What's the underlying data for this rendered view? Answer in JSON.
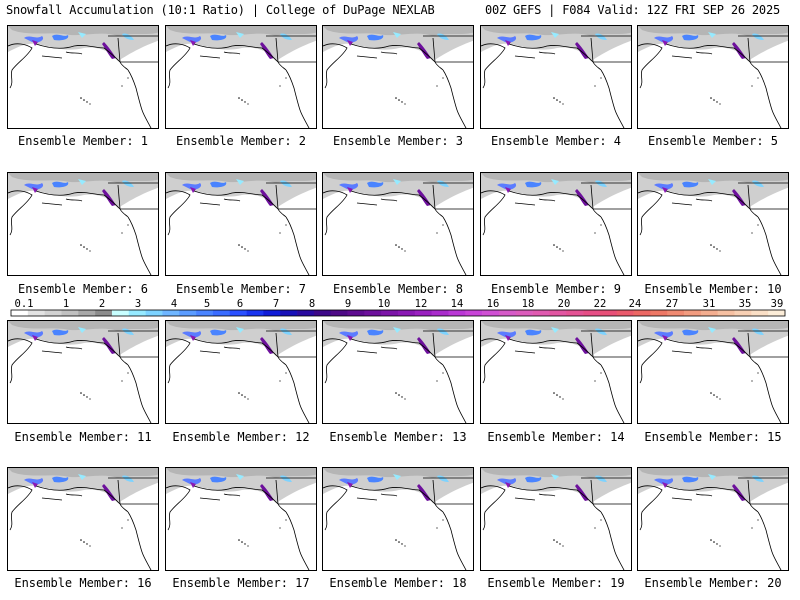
{
  "header": {
    "left": "Snowfall Accumulation (10:1 Ratio) | College of DuPage NEXLAB",
    "right": "00Z GEFS | F084 Valid: 12Z FRI SEP 26 2025"
  },
  "caption_prefix": "Ensemble Member:",
  "members": [
    {
      "number": "1"
    },
    {
      "number": "2"
    },
    {
      "number": "3"
    },
    {
      "number": "4"
    },
    {
      "number": "5"
    },
    {
      "number": "6"
    },
    {
      "number": "7"
    },
    {
      "number": "8"
    },
    {
      "number": "9"
    },
    {
      "number": "10"
    },
    {
      "number": "11"
    },
    {
      "number": "12"
    },
    {
      "number": "13"
    },
    {
      "number": "14"
    },
    {
      "number": "15"
    },
    {
      "number": "16"
    },
    {
      "number": "17"
    },
    {
      "number": "18"
    },
    {
      "number": "19"
    },
    {
      "number": "20"
    }
  ],
  "colorbar": {
    "labels": [
      "0.1",
      "1",
      "2",
      "3",
      "4",
      "5",
      "6",
      "7",
      "8",
      "9",
      "10",
      "12",
      "14",
      "16",
      "18",
      "20",
      "22",
      "24",
      "27",
      "31",
      "35",
      "39"
    ],
    "colors": [
      "#ffffff",
      "#e3e3e3",
      "#d2d2d2",
      "#c1c1c1",
      "#a8a8a8",
      "#8c8c8c",
      "#c8ffff",
      "#96eaff",
      "#7dd3ff",
      "#6fb6ff",
      "#5b9cff",
      "#4a84ff",
      "#3a6cff",
      "#2b50ff",
      "#1a34f0",
      "#101cd8",
      "#1810b8",
      "#2a0aa0",
      "#3d0888",
      "#4e0a86",
      "#5e0c90",
      "#6d109c",
      "#7c14a8",
      "#8a18b4",
      "#9a20c0",
      "#aa2ccc",
      "#ba38d6",
      "#c844d8",
      "#d050d4",
      "#d65ac8",
      "#dc5cbc",
      "#e05ab0",
      "#e256a2",
      "#e45294",
      "#e64e86",
      "#e85078",
      "#ea5a6c",
      "#ec6864",
      "#ee7866",
      "#f08a72",
      "#f29c80",
      "#f4ae90",
      "#f6c0a2",
      "#f8d0b4",
      "#fadfc6",
      "#fcedd8"
    ]
  }
}
